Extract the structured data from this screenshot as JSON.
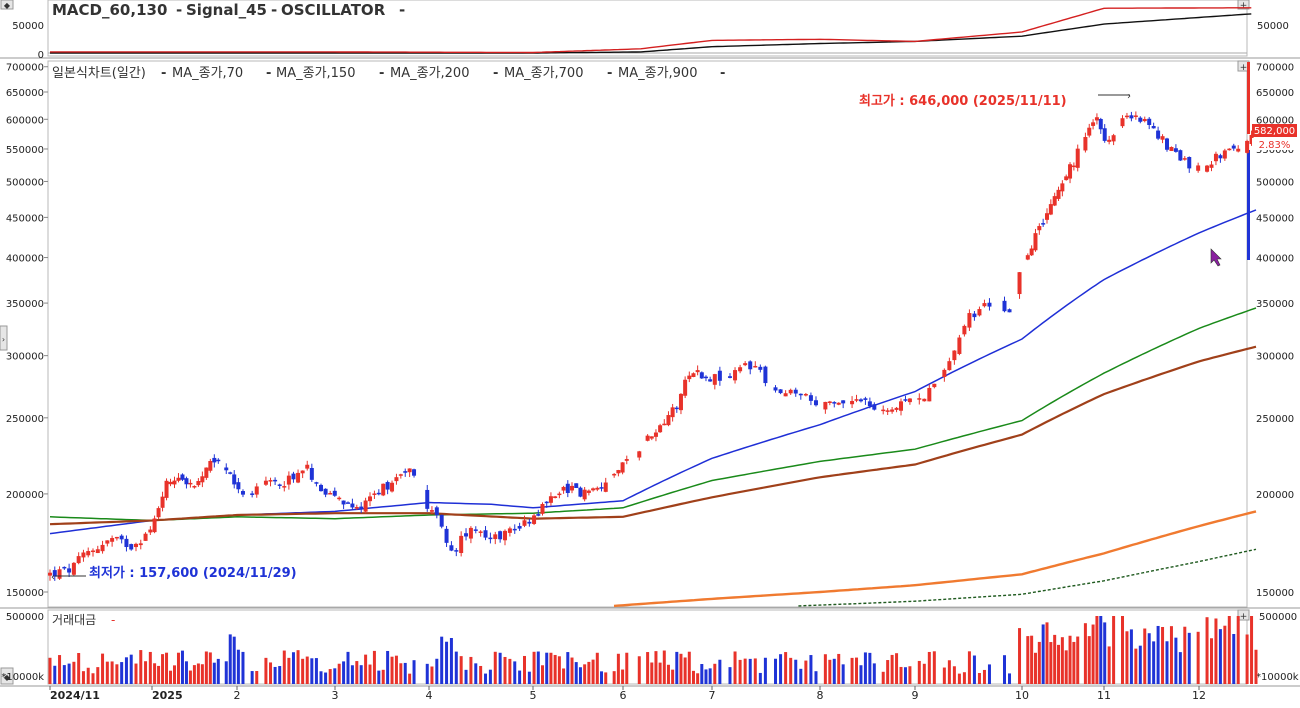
{
  "colors": {
    "up": "#e8322a",
    "down": "#1f33d6",
    "ma70": "#1f2fd6",
    "ma150": "#1a8a1a",
    "ma200": "#a0401a",
    "ma700": "#f07a30",
    "ma900": "#1f5a1f",
    "macd": "#111111",
    "signal": "#d42020",
    "annot_high": "#e8322a",
    "annot_low": "#1f33d6",
    "price_box": "#e8322a"
  },
  "header": {
    "macd_label": "MACD_60,130",
    "signal_label": "Signal_45",
    "osc_label": "OSCILLATOR"
  },
  "price_panel": {
    "title": "일본식차트(일간)",
    "ma_labels": [
      "MA_종가,70",
      "MA_종가,150",
      "MA_종가,200",
      "MA_종가,700",
      "MA_종가,900"
    ],
    "high_annotation": "최고가 : 646,000 (2025/11/11)",
    "low_annotation": "최저가 : 157,600 (2024/11/29)",
    "last_price": "582,000",
    "last_change": "2.83%",
    "right_ticks": [
      "700000",
      "650000",
      "600000",
      "550000",
      "500000",
      "450000",
      "400000",
      "350000",
      "300000",
      "250000",
      "200000",
      "150000"
    ],
    "left_ticks": [
      "700000",
      "650000",
      "600000",
      "550000",
      "500000",
      "450000",
      "400000",
      "350000",
      "300000",
      "250000",
      "200000",
      "150000"
    ]
  },
  "macd_panel": {
    "left_ticks": [
      "50000",
      "0"
    ],
    "right_ticks": [
      "50000"
    ]
  },
  "volume_panel": {
    "title": "거래대금",
    "top_tick": "500000",
    "unit": "*10000k"
  },
  "x_axis": {
    "labels": [
      "2024/11",
      "2025",
      "2",
      "3",
      "4",
      "5",
      "6",
      "7",
      "8",
      "9",
      "10",
      "11",
      "12"
    ]
  },
  "chart_data": {
    "type": "candlestick",
    "scale": "log",
    "x_range": [
      "2024/11",
      "2025/12"
    ],
    "y_range": [
      145000,
      705000
    ],
    "highest": {
      "value": 646000,
      "date": "2025/11/11"
    },
    "lowest": {
      "value": 157600,
      "date": "2024/11/29"
    },
    "last_close": 582000,
    "change_pct": 2.83,
    "close_path": [
      {
        "m": 0,
        "v": 158000
      },
      {
        "m": 0.2,
        "v": 160000
      },
      {
        "m": 0.35,
        "v": 168000
      },
      {
        "m": 0.6,
        "v": 175000
      },
      {
        "m": 0.8,
        "v": 172000
      },
      {
        "m": 1.0,
        "v": 180000
      },
      {
        "m": 1.15,
        "v": 205000
      },
      {
        "m": 1.3,
        "v": 212000
      },
      {
        "m": 1.5,
        "v": 203000
      },
      {
        "m": 1.75,
        "v": 222000
      },
      {
        "m": 1.95,
        "v": 208000
      },
      {
        "m": 2.1,
        "v": 200000
      },
      {
        "m": 2.3,
        "v": 205000
      },
      {
        "m": 2.5,
        "v": 208000
      },
      {
        "m": 2.7,
        "v": 216000
      },
      {
        "m": 2.9,
        "v": 201000
      },
      {
        "m": 3.05,
        "v": 196000
      },
      {
        "m": 3.2,
        "v": 190000
      },
      {
        "m": 3.4,
        "v": 200000
      },
      {
        "m": 3.6,
        "v": 207000
      },
      {
        "m": 3.75,
        "v": 216000
      },
      {
        "m": 3.9,
        "v": 209000
      },
      {
        "m": 4.0,
        "v": 190000
      },
      {
        "m": 4.1,
        "v": 185000
      },
      {
        "m": 4.22,
        "v": 167000
      },
      {
        "m": 4.4,
        "v": 183000
      },
      {
        "m": 4.6,
        "v": 176000
      },
      {
        "m": 4.8,
        "v": 180000
      },
      {
        "m": 5.0,
        "v": 187000
      },
      {
        "m": 5.15,
        "v": 195000
      },
      {
        "m": 5.35,
        "v": 204000
      },
      {
        "m": 5.6,
        "v": 200000
      },
      {
        "m": 5.85,
        "v": 208000
      },
      {
        "m": 6.1,
        "v": 225000
      },
      {
        "m": 6.35,
        "v": 240000
      },
      {
        "m": 6.6,
        "v": 260000
      },
      {
        "m": 6.75,
        "v": 288000
      },
      {
        "m": 6.95,
        "v": 282000
      },
      {
        "m": 7.15,
        "v": 280000
      },
      {
        "m": 7.4,
        "v": 295000
      },
      {
        "m": 7.55,
        "v": 270000
      },
      {
        "m": 7.8,
        "v": 268000
      },
      {
        "m": 8.0,
        "v": 258000
      },
      {
        "m": 8.2,
        "v": 260000
      },
      {
        "m": 8.4,
        "v": 268000
      },
      {
        "m": 8.6,
        "v": 254000
      },
      {
        "m": 8.8,
        "v": 258000
      },
      {
        "m": 9.0,
        "v": 262000
      },
      {
        "m": 9.2,
        "v": 275000
      },
      {
        "m": 9.35,
        "v": 300000
      },
      {
        "m": 9.5,
        "v": 335000
      },
      {
        "m": 9.7,
        "v": 350000
      },
      {
        "m": 9.9,
        "v": 345000
      },
      {
        "m": 10.0,
        "v": 395000
      },
      {
        "m": 10.15,
        "v": 420000
      },
      {
        "m": 10.35,
        "v": 470000
      },
      {
        "m": 10.55,
        "v": 510000
      },
      {
        "m": 10.75,
        "v": 560000
      },
      {
        "m": 10.9,
        "v": 600000
      },
      {
        "m": 11.05,
        "v": 560000
      },
      {
        "m": 11.2,
        "v": 600000
      },
      {
        "m": 11.35,
        "v": 610000
      },
      {
        "m": 11.55,
        "v": 575000
      },
      {
        "m": 11.75,
        "v": 540000
      },
      {
        "m": 11.95,
        "v": 520000
      },
      {
        "m": 12.1,
        "v": 530000
      },
      {
        "m": 12.3,
        "v": 548000
      },
      {
        "m": 12.45,
        "v": 545000
      },
      {
        "m": 12.6,
        "v": 582000
      }
    ],
    "moving_averages": [
      {
        "name": "MA_종가,70",
        "points": [
          [
            0,
            178000
          ],
          [
            1,
            185000
          ],
          [
            2,
            188000
          ],
          [
            3,
            190000
          ],
          [
            4,
            195000
          ],
          [
            4.6,
            194000
          ],
          [
            5,
            192000
          ],
          [
            6,
            196000
          ],
          [
            7,
            222000
          ],
          [
            8,
            245000
          ],
          [
            9,
            270000
          ],
          [
            10,
            315000
          ],
          [
            11,
            375000
          ],
          [
            12,
            430000
          ],
          [
            12.6,
            460000
          ]
        ]
      },
      {
        "name": "MA_종가,150",
        "points": [
          [
            0,
            187000
          ],
          [
            1,
            185000
          ],
          [
            2,
            187000
          ],
          [
            3,
            186000
          ],
          [
            4,
            188000
          ],
          [
            5,
            189000
          ],
          [
            6,
            192000
          ],
          [
            7,
            208000
          ],
          [
            8,
            220000
          ],
          [
            9,
            228000
          ],
          [
            10,
            248000
          ],
          [
            11,
            285000
          ],
          [
            12,
            325000
          ],
          [
            12.6,
            345000
          ]
        ]
      },
      {
        "name": "MA_종가,200",
        "points": [
          [
            0,
            183000
          ],
          [
            1,
            185000
          ],
          [
            2,
            188000
          ],
          [
            3,
            189000
          ],
          [
            4,
            189000
          ],
          [
            5,
            186000
          ],
          [
            6,
            187000
          ],
          [
            7,
            198000
          ],
          [
            8,
            210000
          ],
          [
            9,
            218000
          ],
          [
            10,
            238000
          ],
          [
            11,
            268000
          ],
          [
            12,
            295000
          ],
          [
            12.6,
            308000
          ]
        ]
      },
      {
        "name": "MA_종가,700",
        "points": [
          [
            5.9,
            144000
          ],
          [
            7,
            147000
          ],
          [
            8,
            150000
          ],
          [
            9,
            153000
          ],
          [
            10,
            158000
          ],
          [
            11,
            168000
          ],
          [
            12,
            182000
          ],
          [
            12.6,
            190000
          ]
        ]
      },
      {
        "name": "MA_종가,900",
        "points": [
          [
            7.8,
            144000
          ],
          [
            9,
            146000
          ],
          [
            10,
            149000
          ],
          [
            11,
            155000
          ],
          [
            12,
            164000
          ],
          [
            12.6,
            170000
          ]
        ]
      }
    ],
    "macd": [
      [
        0,
        0
      ],
      [
        5,
        0
      ],
      [
        6.2,
        2000
      ],
      [
        7,
        12000
      ],
      [
        8,
        18000
      ],
      [
        9,
        22000
      ],
      [
        10,
        32000
      ],
      [
        11,
        55000
      ],
      [
        12.6,
        75000
      ]
    ],
    "signal": [
      [
        0,
        2000
      ],
      [
        3,
        2000
      ],
      [
        5,
        1000
      ],
      [
        6.2,
        8000
      ],
      [
        7,
        24000
      ],
      [
        8,
        26000
      ],
      [
        9,
        22000
      ],
      [
        10,
        40000
      ],
      [
        11,
        85000
      ],
      [
        12.6,
        86000
      ]
    ]
  }
}
